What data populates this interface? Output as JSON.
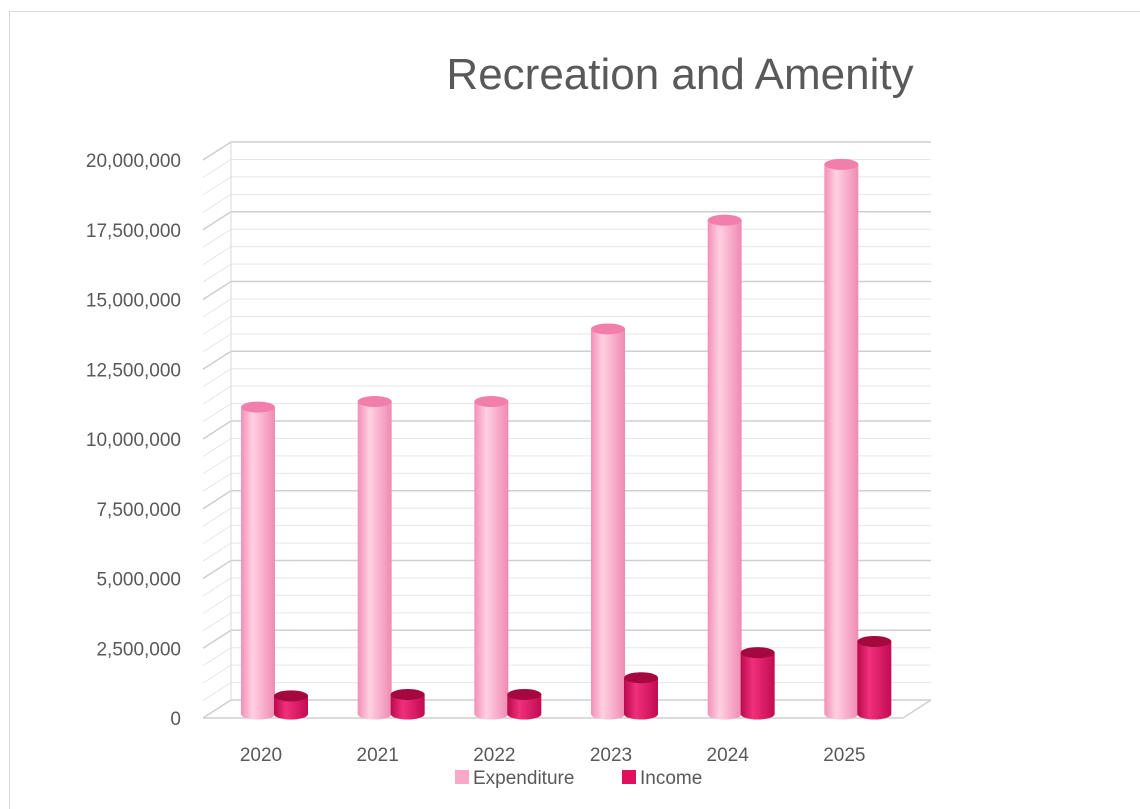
{
  "chart_data": {
    "type": "bar",
    "title": "Recreation and Amenity",
    "xlabel": "",
    "ylabel": "",
    "categories": [
      "2020",
      "2021",
      "2022",
      "2023",
      "2024",
      "2025"
    ],
    "series": [
      {
        "name": "Expenditure",
        "values": [
          11000000,
          11200000,
          11200000,
          13800000,
          17700000,
          19700000
        ],
        "color": "#f9a8c9"
      },
      {
        "name": "Income",
        "values": [
          650000,
          700000,
          700000,
          1300000,
          2200000,
          2600000
        ],
        "color": "#e0105f"
      }
    ],
    "ylim": [
      0,
      20000000
    ],
    "yticks": [
      "0",
      "2,500,000",
      "5,000,000",
      "7,500,000",
      "10,000,000",
      "12,500,000",
      "15,000,000",
      "17,500,000",
      "20,000,000"
    ],
    "grid": true,
    "legend": "bottom",
    "style": "3d-cylinder"
  }
}
